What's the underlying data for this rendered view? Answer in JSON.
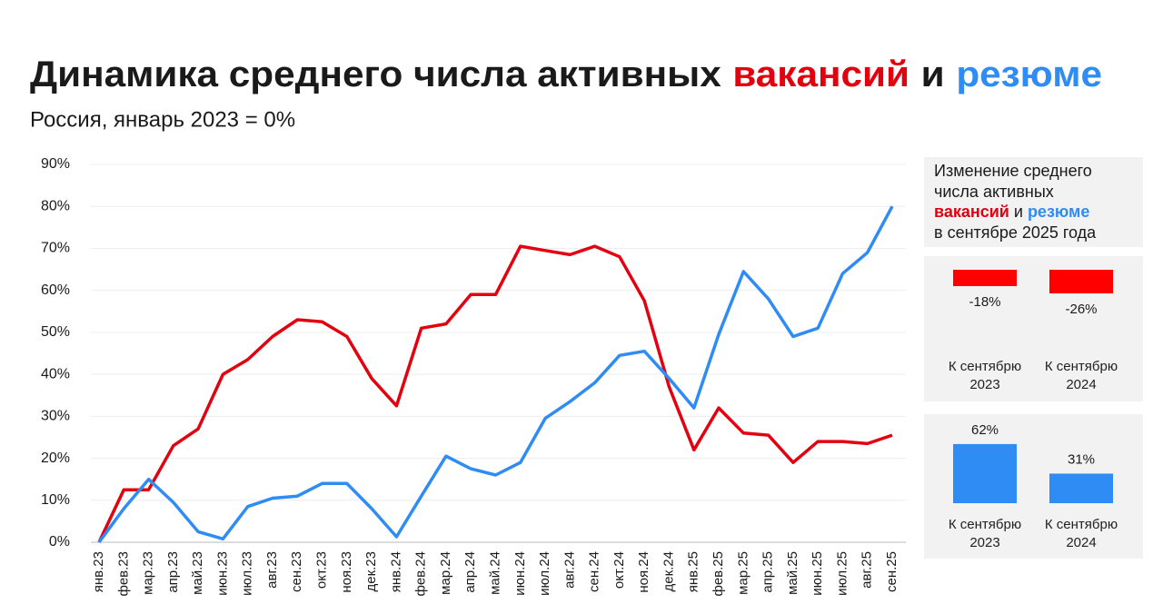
{
  "header": {
    "title": [
      "Динамика среднего числа активных",
      "вакансий",
      "и",
      "резюме"
    ],
    "subtitle": "Россия, январь 2023 = 0%"
  },
  "side_panel": {
    "heading": [
      "Изменение среднего",
      "числа активных",
      "вакансий",
      "и",
      "резюме",
      "в сентябре 2025 года"
    ]
  },
  "chart_data": [
    {
      "type": "line",
      "categories": [
        "янв.23",
        "фев.23",
        "мар.23",
        "апр.23",
        "май.23",
        "июн.23",
        "июл.23",
        "авг.23",
        "сен.23",
        "окт.23",
        "ноя.23",
        "дек.23",
        "янв.24",
        "фев.24",
        "мар.24",
        "апр.24",
        "май.24",
        "июн.24",
        "июл.24",
        "авг.24",
        "сен.24",
        "окт.24",
        "ноя.24",
        "дек.24",
        "янв.25",
        "фев.25",
        "мар.25",
        "апр.25",
        "май.25",
        "июн.25",
        "июл.25",
        "авг.25",
        "сен.25"
      ],
      "series": [
        {
          "color": "#e3000f",
          "values": [
            0,
            12.5,
            12.5,
            23,
            27,
            40,
            43.5,
            49,
            53,
            52.5,
            49,
            39,
            32.5,
            51,
            52,
            59,
            59,
            70.5,
            69.5,
            68.5,
            70.5,
            68,
            57.5,
            37,
            22,
            32,
            26,
            25.5,
            19,
            24,
            24,
            23.5,
            25.5
          ]
        },
        {
          "color": "#2f8cf5",
          "values": [
            0,
            8,
            15,
            9.5,
            2.5,
            0.8,
            8.5,
            10.5,
            11,
            14,
            14,
            8,
            1.3,
            11,
            20.5,
            17.5,
            16,
            19,
            29.5,
            33.5,
            38,
            44.5,
            45.5,
            39,
            32,
            49.5,
            64.5,
            58,
            49,
            51,
            64,
            69,
            80
          ]
        }
      ],
      "ylim": [
        0,
        90
      ],
      "yticks": [
        {
          "value": 0,
          "label": "0%"
        },
        {
          "value": 10,
          "label": "10%"
        },
        {
          "value": 20,
          "label": "20%"
        },
        {
          "value": 30,
          "label": "30%"
        },
        {
          "value": 40,
          "label": "40%"
        },
        {
          "value": 50,
          "label": "50%"
        },
        {
          "value": 60,
          "label": "60%"
        },
        {
          "value": 70,
          "label": "70%"
        },
        {
          "value": 80,
          "label": "80%"
        },
        {
          "value": 90,
          "label": "90%"
        }
      ],
      "grid": true
    },
    {
      "type": "bar",
      "categories": [
        "К сентябрю 2023",
        "К сентябрю 2024"
      ],
      "values": [
        -18,
        -26
      ],
      "value_labels": [
        "-18%",
        "-26%"
      ],
      "color": "#ff0000"
    },
    {
      "type": "bar",
      "categories": [
        "К сентябрю 2023",
        "К сентябрю 2024"
      ],
      "values": [
        62,
        31
      ],
      "value_labels": [
        "62%",
        "31%"
      ],
      "color": "#2f8cf5"
    }
  ]
}
